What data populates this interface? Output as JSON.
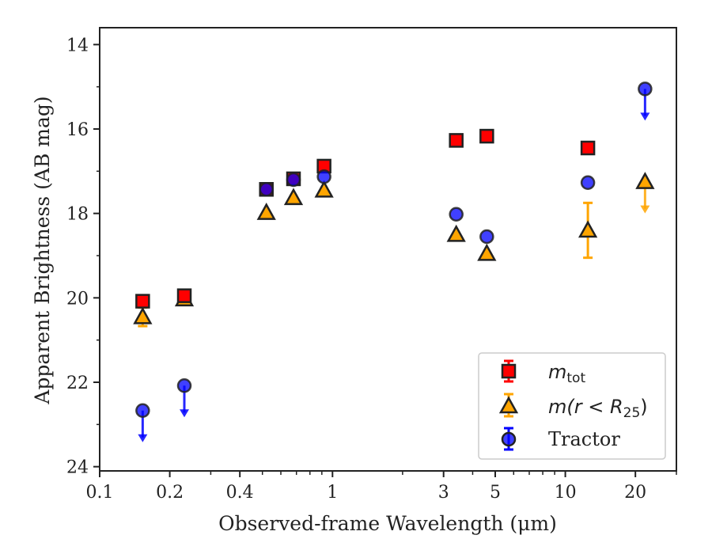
{
  "chart_data": {
    "type": "scatter",
    "title": "",
    "xlabel": "Observed-frame Wavelength (μm)",
    "ylabel": "Apparent Brightness (AB mag)",
    "xscale": "log",
    "xlim": [
      0.1,
      30
    ],
    "ylim": [
      24.1,
      13.6
    ],
    "y_inverted": true,
    "x_ticks": [
      {
        "value": 0.1,
        "label": "0.1"
      },
      {
        "value": 0.2,
        "label": "0.2"
      },
      {
        "value": 0.4,
        "label": "0.4"
      },
      {
        "value": 1,
        "label": "1"
      },
      {
        "value": 3,
        "label": "3"
      },
      {
        "value": 5,
        "label": "5"
      },
      {
        "value": 10,
        "label": "10"
      },
      {
        "value": 20,
        "label": "20"
      }
    ],
    "x_minor_ticks": [
      0.3,
      0.5,
      0.6,
      0.7,
      0.8,
      0.9,
      2,
      4,
      6,
      7,
      8,
      9,
      30
    ],
    "y_ticks": [
      {
        "value": 14,
        "label": "14"
      },
      {
        "value": 16,
        "label": "16"
      },
      {
        "value": 18,
        "label": "18"
      },
      {
        "value": 20,
        "label": "20"
      },
      {
        "value": 22,
        "label": "22"
      },
      {
        "value": 24,
        "label": "24"
      }
    ],
    "grid": false,
    "legend_position": "bottom-right",
    "series": [
      {
        "name": "m_tot",
        "legend_label": {
          "main": "m",
          "sub": "tot"
        },
        "marker": "square",
        "color": "#ff0000",
        "points": [
          {
            "x": 0.153,
            "y": 20.08
          },
          {
            "x": 0.231,
            "y": 19.95
          },
          {
            "x": 0.52,
            "y": 17.43
          },
          {
            "x": 0.68,
            "y": 17.18
          },
          {
            "x": 0.92,
            "y": 16.88
          },
          {
            "x": 3.4,
            "y": 16.27
          },
          {
            "x": 4.6,
            "y": 16.17
          },
          {
            "x": 12.5,
            "y": 16.45
          }
        ]
      },
      {
        "name": "m(r < R25)",
        "legend_label": {
          "main": "m(r < R",
          "sub": "25",
          "end": ")"
        },
        "marker": "triangle",
        "color": "#ffa500",
        "points": [
          {
            "x": 0.153,
            "y": 20.45,
            "yerr": 0.22
          },
          {
            "x": 0.231,
            "y": 20.03
          },
          {
            "x": 0.52,
            "y": 17.98
          },
          {
            "x": 0.68,
            "y": 17.63
          },
          {
            "x": 0.92,
            "y": 17.45
          },
          {
            "x": 3.4,
            "y": 18.5
          },
          {
            "x": 4.6,
            "y": 18.95
          },
          {
            "x": 12.5,
            "y": 18.4,
            "yerr": 0.65
          },
          {
            "x": 22,
            "y": 17.25,
            "upper_limit": true
          }
        ]
      },
      {
        "name": "Tractor",
        "marker": "circle",
        "color": "#0000ff",
        "points": [
          {
            "x": 0.153,
            "y": 22.67,
            "upper_limit": true
          },
          {
            "x": 0.231,
            "y": 22.08,
            "upper_limit": true
          },
          {
            "x": 0.52,
            "y": 17.43
          },
          {
            "x": 0.68,
            "y": 17.2
          },
          {
            "x": 0.92,
            "y": 17.13
          },
          {
            "x": 3.4,
            "y": 18.02
          },
          {
            "x": 4.6,
            "y": 18.55
          },
          {
            "x": 12.5,
            "y": 17.27
          },
          {
            "x": 22,
            "y": 15.05,
            "upper_limit": true
          }
        ]
      }
    ],
    "legend_tractor": "Tractor"
  }
}
